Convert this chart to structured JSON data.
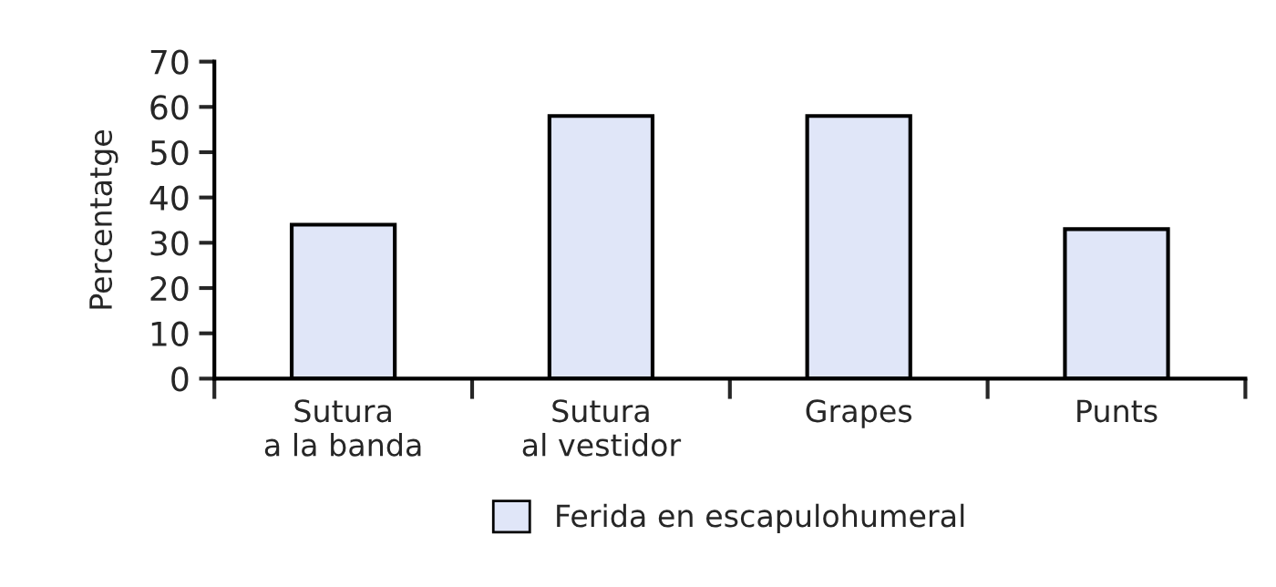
{
  "chart_data": {
    "type": "bar",
    "ylabel": "Percentatge",
    "categories": [
      "Sutura\na la banda",
      "Sutura\nal vestidor",
      "Grapes",
      "Punts"
    ],
    "series": [
      {
        "name": "Ferida en escapulohumeral",
        "color": "#e0e6f8",
        "values": [
          34,
          58,
          58,
          33
        ]
      }
    ],
    "ylim": [
      0,
      70
    ],
    "yticks": [
      0,
      10,
      20,
      30,
      40,
      50,
      60,
      70
    ],
    "grid": false,
    "legend": "bottom"
  }
}
